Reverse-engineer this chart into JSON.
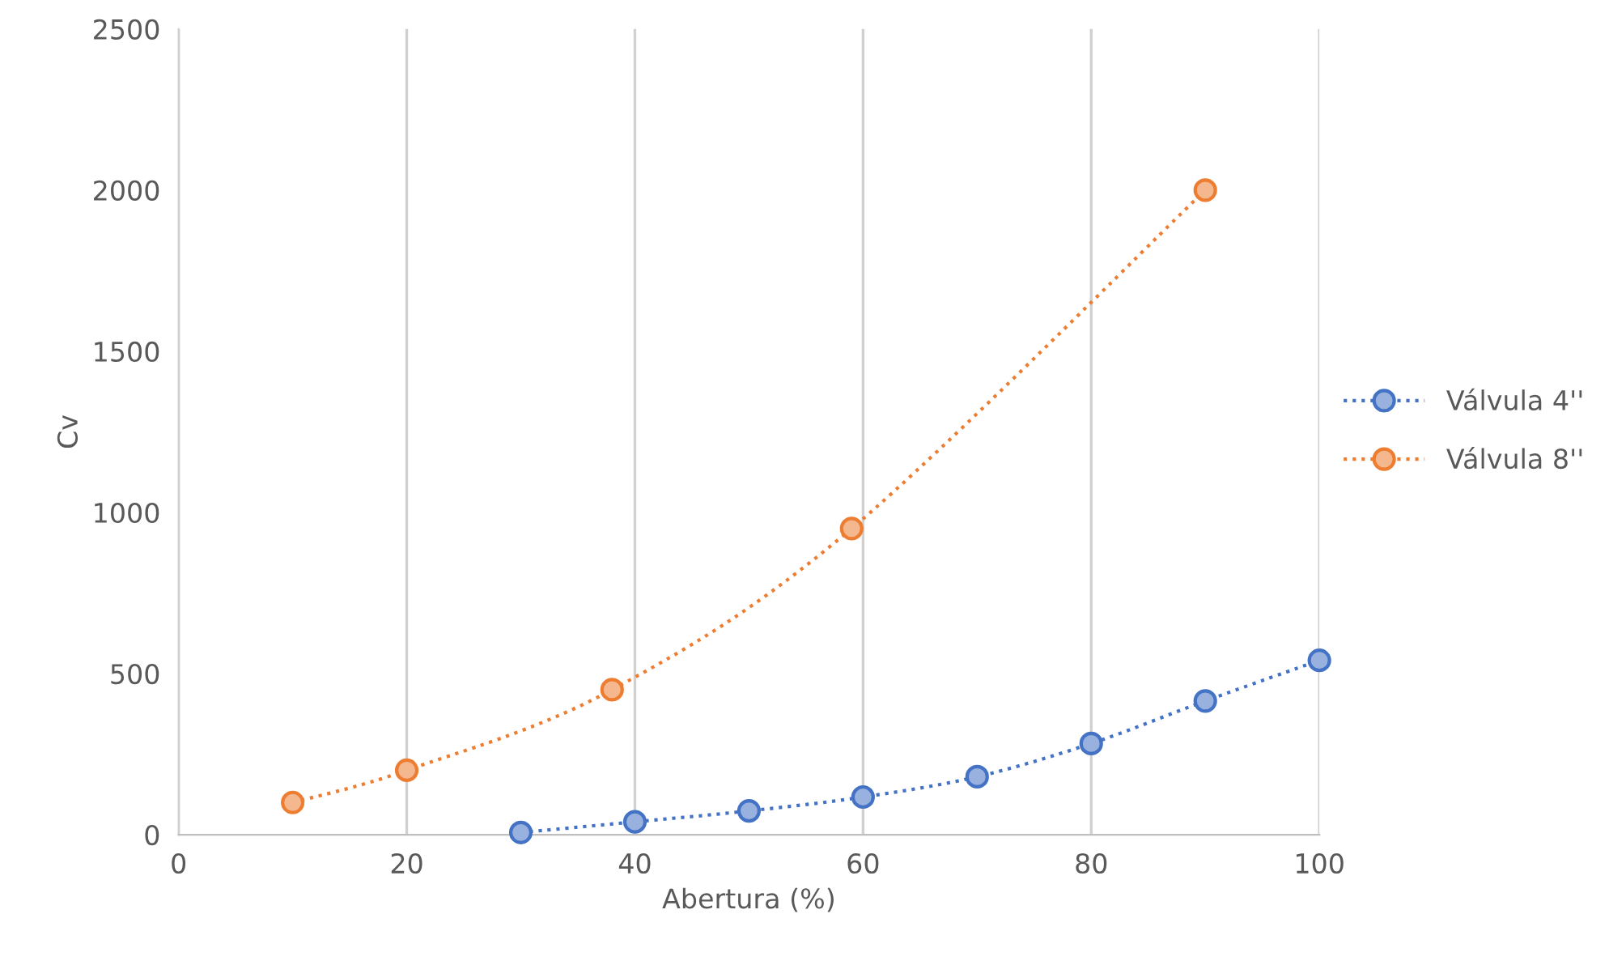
{
  "chart_data": {
    "type": "line",
    "xlabel": "Abertura (%)",
    "ylabel": "Cv",
    "xlim": [
      0,
      100
    ],
    "xticks": [
      0,
      20,
      40,
      60,
      80,
      100
    ],
    "ylim": [
      0,
      2500
    ],
    "yticks": [
      0,
      500,
      1000,
      1500,
      2000,
      2500
    ],
    "grid": "x",
    "legend": "right",
    "marker": "circle",
    "line_style": "dotted",
    "series": [
      {
        "name": "Válvula 4''",
        "color": "#4472c4",
        "x": [
          30,
          40,
          50,
          60,
          70,
          80,
          90,
          100
        ],
        "values": [
          7,
          40,
          74,
          117,
          180,
          283,
          415,
          541
        ]
      },
      {
        "name": "Válvula 8''",
        "color": "#ed7d31",
        "x": [
          10,
          20,
          38,
          59,
          90
        ],
        "values": [
          100,
          200,
          450,
          950,
          2000
        ]
      }
    ]
  }
}
